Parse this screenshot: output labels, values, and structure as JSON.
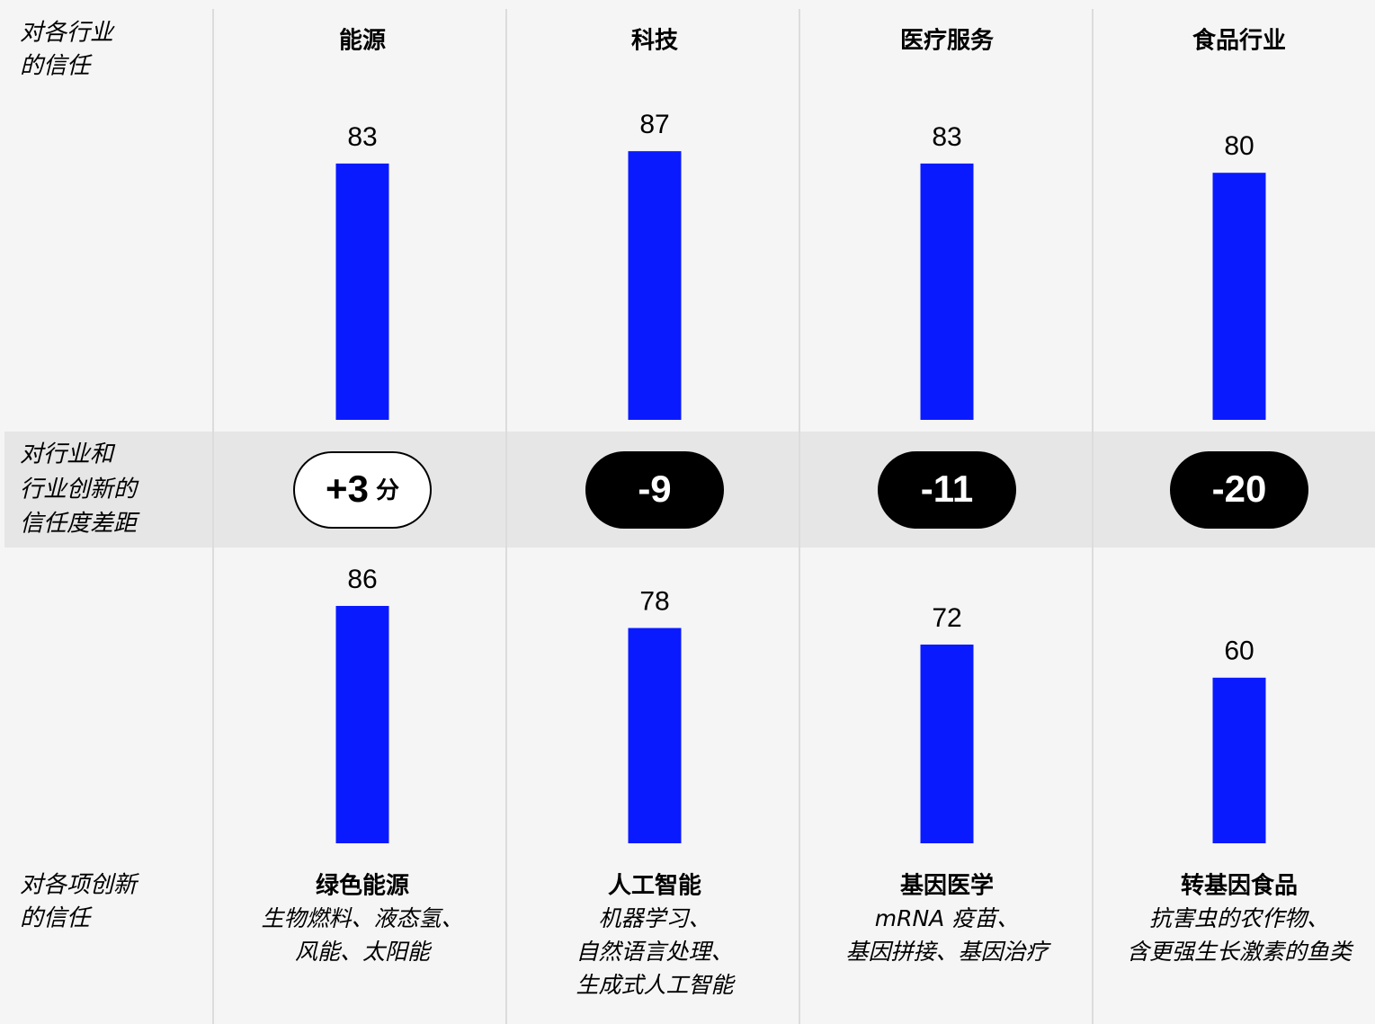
{
  "chart_data": {
    "type": "bar",
    "row_labels": [
      [
        "对各行业",
        "的信任"
      ],
      [
        "对行业和",
        "行业创新的",
        "信任度差距"
      ],
      [
        "对各项创新",
        "的信任"
      ]
    ],
    "categories": [
      "能源",
      "科技",
      "医疗服务",
      "食品行业"
    ],
    "series": [
      {
        "color": "#0a1aff",
        "values": [
          83,
          87,
          83,
          80
        ]
      },
      {
        "color": "#0a1aff",
        "values": [
          86,
          78,
          72,
          60
        ]
      }
    ],
    "gaps": {
      "values": [
        3,
        -9,
        -11,
        -20
      ],
      "value_labels": [
        "+3",
        "-9",
        "-11",
        "-20"
      ],
      "unit": "分"
    },
    "innovations": [
      {
        "name": "绿色能源",
        "examples": [
          "生物燃料、液态氢、",
          "风能、太阳能"
        ]
      },
      {
        "name": "人工智能",
        "examples": [
          "机器学习、",
          "自然语言处理、",
          "生成式人工智能"
        ]
      },
      {
        "name": "基因医学",
        "examples": [
          "mRNA 疫苗、",
          "基因拼接、基因治疗"
        ]
      },
      {
        "name": "转基因食品",
        "examples": [
          "抗害虫的农作物、",
          "含更强生长激素的鱼类"
        ]
      }
    ]
  }
}
